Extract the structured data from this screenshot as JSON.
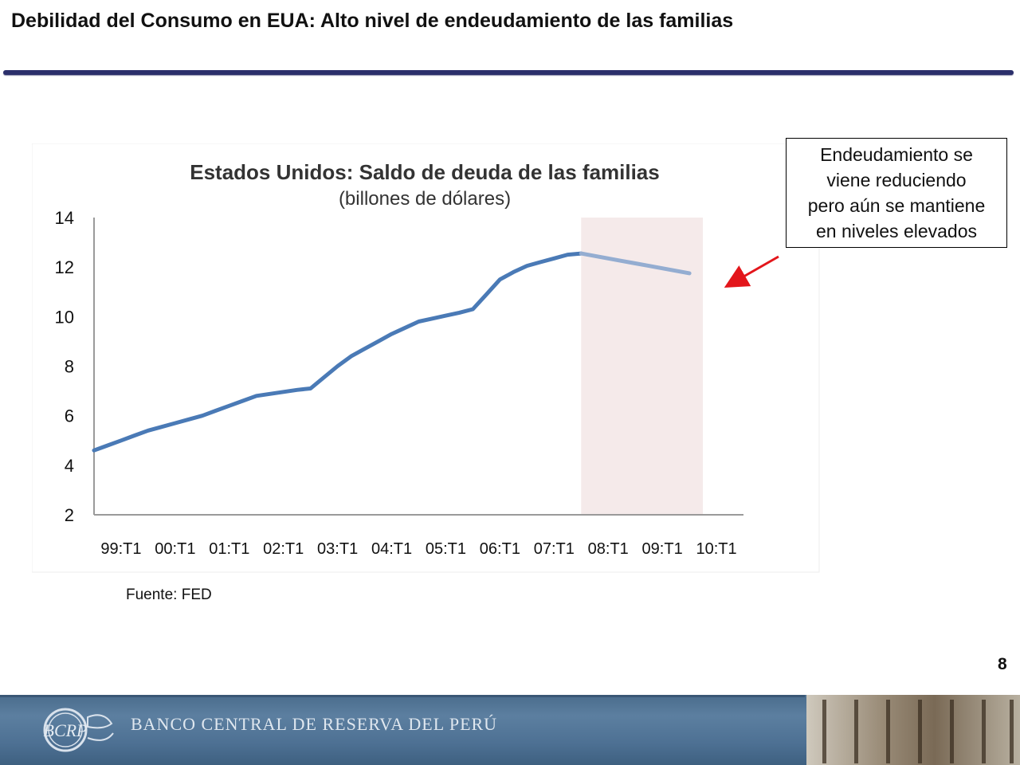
{
  "slide": {
    "title": "Debilidad del Consumo en EUA: Alto nivel de endeudamiento de las familias",
    "source": "Fuente: FED",
    "page_number": "8"
  },
  "callout": {
    "text": "Endeudamiento se\nviene reduciendo\npero aún se mantiene\nen  niveles elevados",
    "arrow_color": "#e3161b"
  },
  "footer": {
    "bank_name": "BANCO CENTRAL DE RESERVA DEL PERÚ",
    "logo_letters": "BCRP",
    "band_color": "#527597"
  },
  "chart_data": {
    "type": "line",
    "title": "Estados Unidos: Saldo de deuda de las familias",
    "subtitle": "(billones de dólares)",
    "xlabel": "",
    "ylabel": "",
    "categories": [
      "99:T1",
      "00:T1",
      "01:T1",
      "02:T1",
      "03:T1",
      "04:T1",
      "05:T1",
      "06:T1",
      "07:T1",
      "08:T1",
      "09:T1",
      "10:T1"
    ],
    "x": [
      1999.0,
      1999.25,
      1999.5,
      1999.75,
      2000.0,
      2000.25,
      2000.5,
      2000.75,
      2001.0,
      2001.25,
      2001.5,
      2001.75,
      2002.0,
      2002.25,
      2002.5,
      2002.75,
      2003.0,
      2003.25,
      2003.5,
      2003.75,
      2004.0,
      2004.25,
      2004.5,
      2004.75,
      2005.0,
      2005.25,
      2005.5,
      2005.75,
      2006.0,
      2006.25,
      2006.5,
      2006.75,
      2007.0,
      2007.25,
      2007.5,
      2007.75,
      2008.0,
      2008.25,
      2008.5,
      2008.75,
      2009.0,
      2009.25,
      2009.5,
      2009.75,
      2010.0
    ],
    "series": [
      {
        "values": [
          4.6,
          4.8,
          5.0,
          5.2,
          5.4,
          5.55,
          5.7,
          5.85,
          6.0,
          6.2,
          6.4,
          6.6,
          6.8,
          6.88,
          6.96,
          7.04,
          7.1,
          7.55,
          8.0,
          8.4,
          8.7,
          9.0,
          9.3,
          9.55,
          9.8,
          9.92,
          10.04,
          10.16,
          10.3,
          10.9,
          11.5,
          11.8,
          12.05,
          12.2,
          12.35,
          12.5,
          12.55,
          12.45,
          12.35,
          12.25,
          12.15,
          12.05,
          11.95,
          11.85,
          11.75
        ],
        "color": "#4a7ab6",
        "highlight_from": 2008.0,
        "highlight_color": "#94add1"
      }
    ],
    "ylim": [
      2,
      14
    ],
    "yticks": [
      2,
      4,
      6,
      8,
      10,
      12,
      14
    ],
    "xlim": [
      1999.0,
      2011.0
    ],
    "grid": false,
    "shaded_region": {
      "from": 2008.0,
      "to": 2010.25,
      "color": "#f5eaea"
    },
    "tick_color": "#111111"
  }
}
